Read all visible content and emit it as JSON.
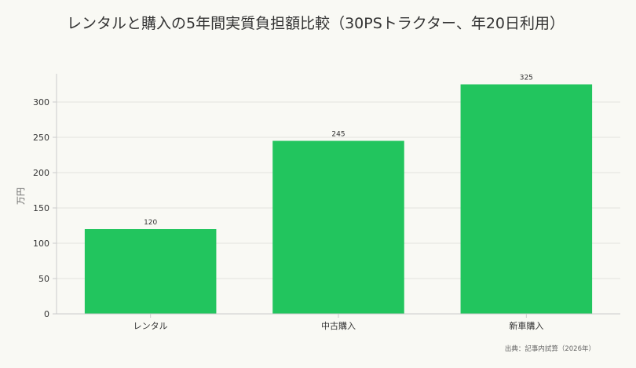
{
  "chart_data": {
    "type": "bar",
    "title": "レンタルと購入の5年間実質負担額比較（30PSトラクター、年20日利用）",
    "categories": [
      "レンタル",
      "中古購入",
      "新車購入"
    ],
    "values": [
      120,
      245,
      325
    ],
    "data_labels": [
      "120",
      "245",
      "325"
    ],
    "xlabel": "",
    "ylabel": "万円",
    "ylim": [
      0,
      340
    ],
    "yticks": [
      0,
      50,
      100,
      150,
      200,
      250,
      300
    ],
    "grid": "horizontal",
    "bar_color": "#22c55e",
    "source": "出典：記事内試算（2026年）"
  }
}
